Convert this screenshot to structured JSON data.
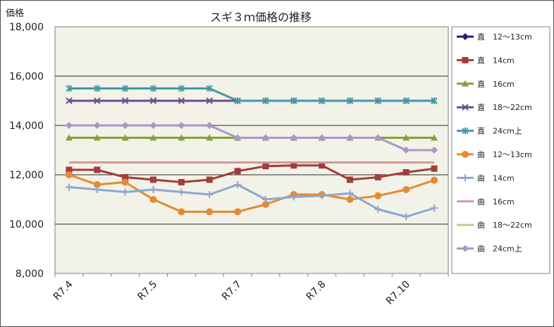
{
  "chart_data": {
    "type": "line",
    "title": "スギ３ｍ価格の推移",
    "ylabel": "価格",
    "xlabel": "",
    "ylim": [
      8000,
      18000
    ],
    "yticks": [
      8000,
      10000,
      12000,
      14000,
      16000,
      18000
    ],
    "ytick_labels": [
      "8,000",
      "10,000",
      "12,000",
      "14,000",
      "16,000",
      "18,000"
    ],
    "x_count": 14,
    "x_tick_labels": [
      {
        "index": 0,
        "label": "R7.4"
      },
      {
        "index": 3,
        "label": "R7.5"
      },
      {
        "index": 6,
        "label": "R7.7"
      },
      {
        "index": 9,
        "label": "R7.8"
      },
      {
        "index": 12,
        "label": "R7.10"
      }
    ],
    "grid": true,
    "legend_position": "right",
    "series": [
      {
        "name": "直　12～13cm",
        "color": "#1f1f7a",
        "marker": "diamond",
        "values": [
          null,
          null,
          null,
          null,
          null,
          null,
          null,
          null,
          null,
          null,
          null,
          null,
          null,
          null
        ]
      },
      {
        "name": "直　14cm",
        "color": "#a33c3a",
        "marker": "square",
        "values": [
          12200,
          12200,
          11900,
          11800,
          11700,
          11800,
          12150,
          12350,
          12380,
          12380,
          11800,
          11900,
          12100,
          12250
        ]
      },
      {
        "name": "直　16cm",
        "color": "#7fa337",
        "marker": "triangle",
        "values": [
          13500,
          13500,
          13500,
          13500,
          13500,
          13500,
          13500,
          13500,
          13500,
          13500,
          13500,
          13500,
          13500,
          13500
        ]
      },
      {
        "name": "直　18～22cm",
        "color": "#6b4c8f",
        "marker": "x",
        "values": [
          15000,
          15000,
          15000,
          15000,
          15000,
          15000,
          15000,
          15000,
          15000,
          15000,
          15000,
          15000,
          15000,
          15000
        ]
      },
      {
        "name": "直　24cm上",
        "color": "#3f9aaa",
        "marker": "star",
        "values": [
          15500,
          15500,
          15500,
          15500,
          15500,
          15500,
          15000,
          15000,
          15000,
          15000,
          15000,
          15000,
          15000,
          15000
        ]
      },
      {
        "name": "曲　12～13cm",
        "color": "#e48a32",
        "marker": "circle",
        "values": [
          12000,
          11600,
          11700,
          11000,
          10500,
          10500,
          10500,
          10800,
          11200,
          11200,
          11000,
          11150,
          11400,
          11780
        ]
      },
      {
        "name": "曲　14cm",
        "color": "#8ea6cf",
        "marker": "plus",
        "values": [
          11500,
          11400,
          11300,
          11400,
          11300,
          11200,
          11600,
          11000,
          11100,
          11150,
          11250,
          10600,
          10300,
          10650
        ]
      },
      {
        "name": "曲　16cm",
        "color": "#d39a97",
        "marker": "none",
        "values": [
          12500,
          12500,
          12500,
          12500,
          12500,
          12500,
          12500,
          12500,
          12500,
          12500,
          12500,
          12500,
          12500,
          12500
        ]
      },
      {
        "name": "曲　18～22cm",
        "color": "#b5d18f",
        "marker": "none",
        "values": [
          null,
          null,
          null,
          null,
          null,
          null,
          null,
          null,
          null,
          null,
          null,
          null,
          null,
          null
        ]
      },
      {
        "name": "曲　24cm上",
        "color": "#a897c6",
        "marker": "diamond",
        "values": [
          14000,
          14000,
          14000,
          14000,
          14000,
          14000,
          13500,
          13500,
          13500,
          13500,
          13500,
          13500,
          13000,
          13000
        ]
      }
    ]
  }
}
